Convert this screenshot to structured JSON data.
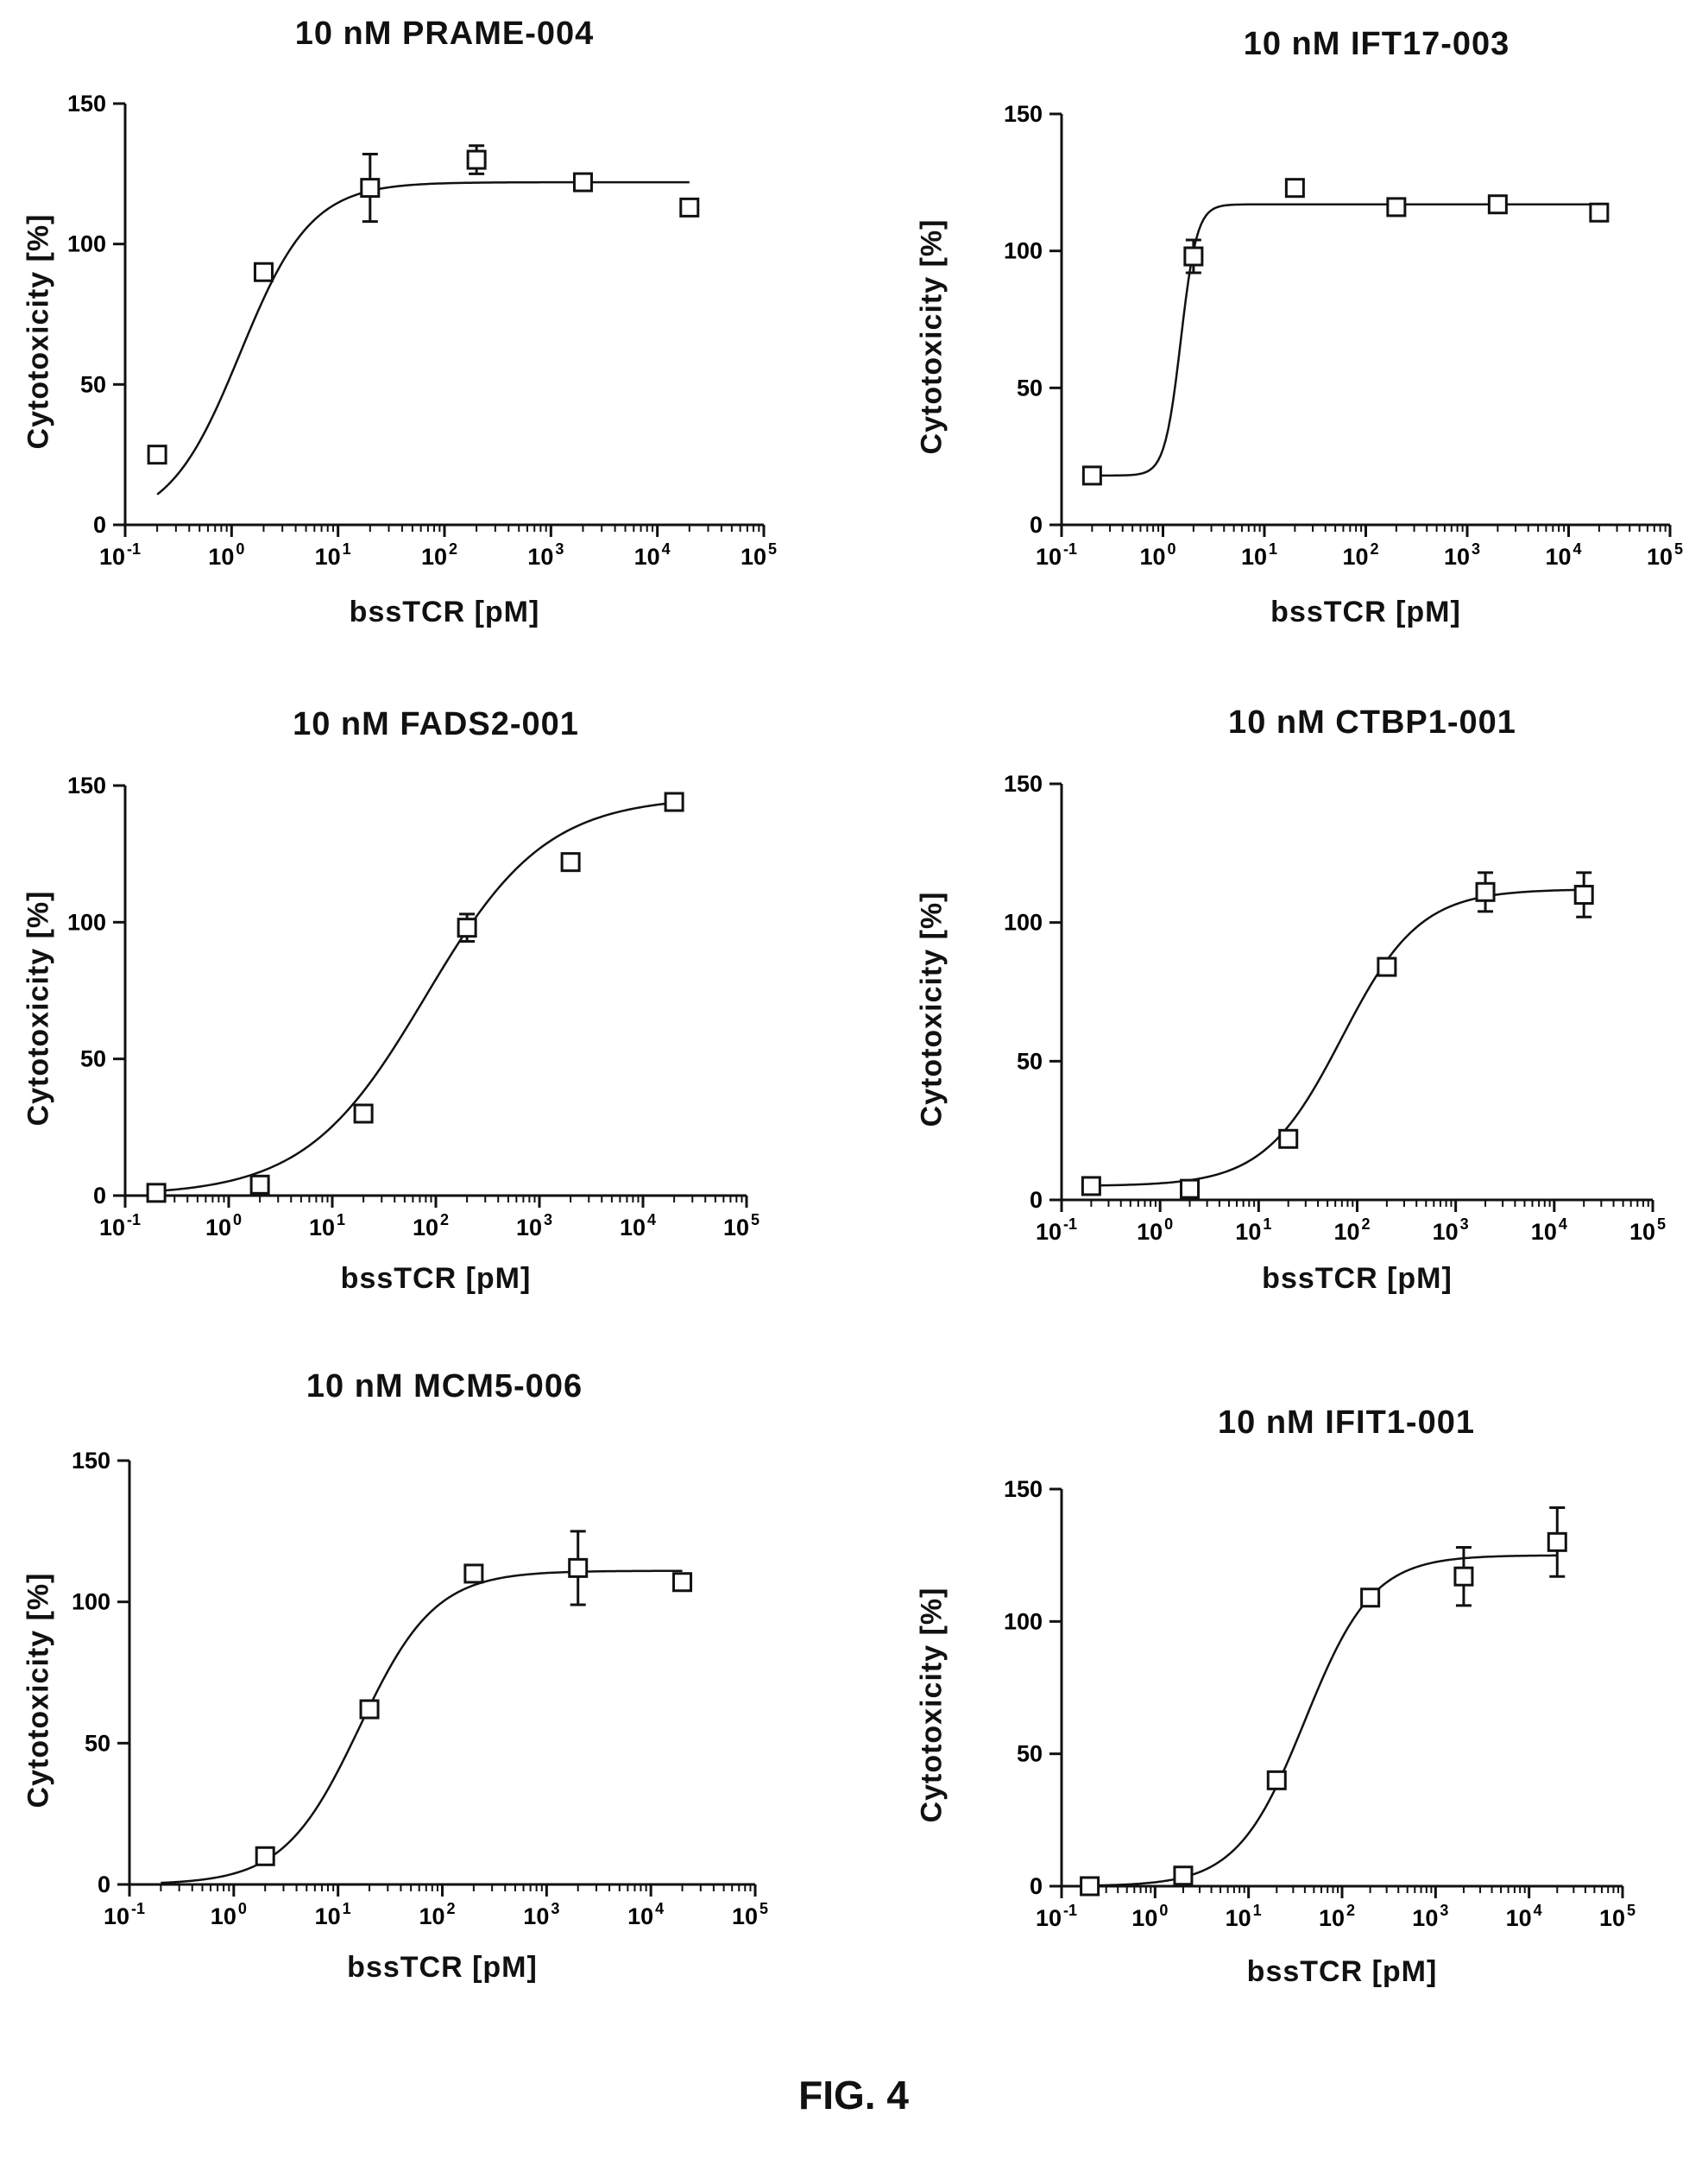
{
  "figure_label": "FIG. 4",
  "chart_data": [
    {
      "type": "scatter",
      "title": "10 nM PRAME-004",
      "xlabel": "bssTCR [pM]",
      "ylabel": "Cytotoxicity [%]",
      "x_scale": "log",
      "xlim": [
        0.1,
        100000
      ],
      "ylim": [
        0,
        150
      ],
      "x_ticks": [
        "10-1",
        "100",
        "101",
        "102",
        "103",
        "104",
        "105"
      ],
      "y_ticks": [
        0,
        50,
        100,
        150
      ],
      "x": [
        0.2,
        2,
        20,
        200,
        2000,
        20000
      ],
      "y": [
        25,
        90,
        120,
        130,
        122,
        113
      ],
      "y_err": [
        0,
        0,
        12,
        5,
        0,
        0
      ],
      "fit": {
        "bottom": 0,
        "top": 122,
        "ec50": 1.2,
        "hill": 1.3
      }
    },
    {
      "type": "scatter",
      "title": "10 nM IFT17-003",
      "xlabel": "bssTCR [pM]",
      "ylabel": "Cytotoxicity [%]",
      "x_scale": "log",
      "xlim": [
        0.1,
        100000
      ],
      "ylim": [
        0,
        150
      ],
      "x_ticks": [
        "10-1",
        "100",
        "101",
        "102",
        "103",
        "104",
        "105"
      ],
      "y_ticks": [
        0,
        50,
        100,
        150
      ],
      "x": [
        0.2,
        2,
        20,
        200,
        2000,
        20000
      ],
      "y": [
        18,
        98,
        123,
        116,
        117,
        114
      ],
      "y_err": [
        0,
        6,
        0,
        0,
        0,
        0
      ],
      "fit": {
        "bottom": 18,
        "top": 117,
        "ec50": 1.5,
        "hill": 5.5
      }
    },
    {
      "type": "scatter",
      "title": "10 nM FADS2-001",
      "xlabel": "bssTCR [pM]",
      "ylabel": "Cytotoxicity [%]",
      "x_scale": "log",
      "xlim": [
        0.1,
        100000
      ],
      "ylim": [
        0,
        150
      ],
      "x_ticks": [
        "10-1",
        "100",
        "101",
        "102",
        "103",
        "104",
        "105"
      ],
      "y_ticks": [
        0,
        50,
        100,
        150
      ],
      "x": [
        0.2,
        2,
        20,
        200,
        2000,
        20000
      ],
      "y": [
        1,
        4,
        30,
        98,
        122,
        144
      ],
      "y_err": [
        0,
        0,
        0,
        5,
        3,
        0
      ],
      "fit": {
        "bottom": 0,
        "top": 146,
        "ec50": 80,
        "hill": 0.75
      }
    },
    {
      "type": "scatter",
      "title": "10 nM CTBP1-001",
      "xlabel": "bssTCR [pM]",
      "ylabel": "Cytotoxicity [%]",
      "x_scale": "log",
      "xlim": [
        0.1,
        100000
      ],
      "ylim": [
        0,
        150
      ],
      "x_ticks": [
        "10-1",
        "100",
        "101",
        "102",
        "103",
        "104",
        "105"
      ],
      "y_ticks": [
        0,
        50,
        100,
        150
      ],
      "x": [
        0.2,
        2,
        20,
        200,
        2000,
        20000
      ],
      "y": [
        5,
        4,
        22,
        84,
        111,
        110
      ],
      "y_err": [
        0,
        0,
        0,
        0,
        7,
        8
      ],
      "fit": {
        "bottom": 5,
        "top": 112,
        "ec50": 70,
        "hill": 1.1
      }
    },
    {
      "type": "scatter",
      "title": "10 nM MCM5-006",
      "xlabel": "bssTCR [pM]",
      "ylabel": "Cytotoxicity [%]",
      "x_scale": "log",
      "xlim": [
        0.1,
        100000
      ],
      "ylim": [
        0,
        150
      ],
      "x_ticks": [
        "10-1",
        "100",
        "101",
        "102",
        "103",
        "104",
        "105"
      ],
      "y_ticks": [
        0,
        50,
        100,
        150
      ],
      "x": [
        2,
        20,
        200,
        2000,
        20000
      ],
      "y": [
        10,
        62,
        110,
        112,
        107
      ],
      "y_err": [
        0,
        0,
        0,
        13,
        0
      ],
      "fit": {
        "bottom": 0,
        "top": 111,
        "ec50": 16,
        "hill": 1.2,
        "x_start": 0.2
      }
    },
    {
      "type": "scatter",
      "title": "10 nM IFIT1-001",
      "xlabel": "bssTCR [pM]",
      "ylabel": "Cytotoxicity [%]",
      "x_scale": "log",
      "xlim": [
        0.1,
        100000
      ],
      "ylim": [
        0,
        150
      ],
      "x_ticks": [
        "10-1",
        "100",
        "101",
        "102",
        "103",
        "104",
        "105"
      ],
      "y_ticks": [
        0,
        50,
        100,
        150
      ],
      "x": [
        0.2,
        2,
        20,
        200,
        2000,
        20000
      ],
      "y": [
        0,
        4,
        40,
        109,
        117,
        130
      ],
      "y_err": [
        0,
        0,
        0,
        0,
        11,
        13
      ],
      "fit": {
        "bottom": 0,
        "top": 125,
        "ec50": 40,
        "hill": 1.2
      }
    }
  ]
}
